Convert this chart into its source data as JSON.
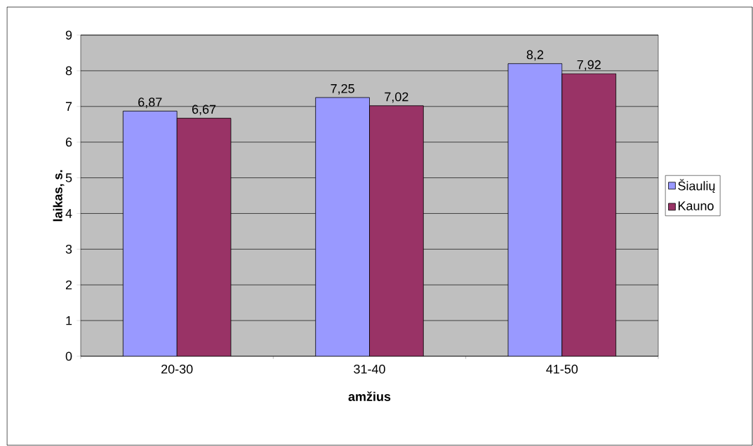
{
  "chart_data": {
    "type": "bar",
    "categories": [
      "20-30",
      "31-40",
      "41-50"
    ],
    "series": [
      {
        "name": "Šiaulių",
        "color": "#9999ff",
        "values": [
          6.87,
          7.25,
          8.2
        ],
        "value_labels": [
          "6,87",
          "7,25",
          "8,2"
        ]
      },
      {
        "name": "Kauno",
        "color": "#993366",
        "values": [
          6.67,
          7.02,
          7.92
        ],
        "value_labels": [
          "6,67",
          "7,02",
          "7,92"
        ]
      }
    ],
    "xlabel": "amžius",
    "ylabel": "laikas, s.",
    "ylim": [
      0,
      9
    ],
    "yticks": [
      0,
      1,
      2,
      3,
      4,
      5,
      6,
      7,
      8,
      9
    ],
    "grid": "y",
    "legend": "right"
  }
}
